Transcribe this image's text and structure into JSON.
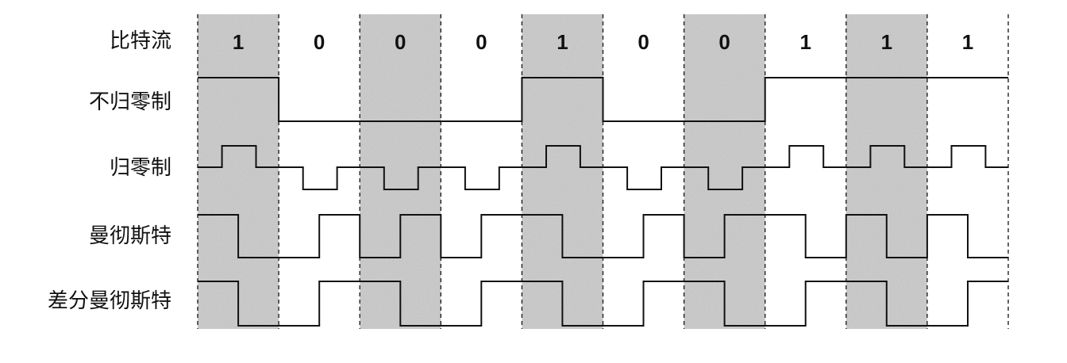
{
  "bits": [
    "1",
    "0",
    "0",
    "0",
    "1",
    "0",
    "0",
    "1",
    "1",
    "1"
  ],
  "shaded_columns": [
    0,
    2,
    4,
    6,
    8
  ],
  "rows": [
    {
      "id": "bitstream",
      "label": "比特流"
    },
    {
      "id": "nrz",
      "label": "不归零制"
    },
    {
      "id": "rz",
      "label": "归零制"
    },
    {
      "id": "manchester",
      "label": "曼彻斯特"
    },
    {
      "id": "diff_manchester",
      "label": "差分曼彻斯特"
    }
  ],
  "encodings": {
    "nrz": [
      1,
      0,
      0,
      0,
      1,
      0,
      0,
      1,
      1,
      1
    ],
    "rz": [
      1,
      0,
      0,
      0,
      1,
      0,
      0,
      1,
      1,
      1
    ],
    "manchester": [
      1,
      0,
      0,
      0,
      1,
      0,
      0,
      1,
      1,
      1
    ],
    "diff_manchester_first_half_levels": [
      1,
      0,
      1,
      0,
      1,
      0,
      1,
      0,
      1,
      0
    ]
  },
  "colors": {
    "shade": "#cfcfcf",
    "line": "#111111",
    "background": "#ffffff"
  }
}
